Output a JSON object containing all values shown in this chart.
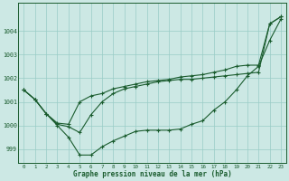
{
  "xlabel": "Graphe pression niveau de la mer (hPa)",
  "x_ticks": [
    0,
    1,
    2,
    3,
    4,
    5,
    6,
    7,
    8,
    9,
    10,
    11,
    12,
    13,
    14,
    15,
    16,
    17,
    18,
    19,
    20,
    21,
    22,
    23
  ],
  "ylim": [
    998.4,
    1005.2
  ],
  "yticks": [
    999,
    1000,
    1001,
    1002,
    1003,
    1004
  ],
  "background_color": "#cce8e4",
  "grid_color": "#99ccc6",
  "line_color": "#1a5c2e",
  "line1": [
    1001.5,
    1001.1,
    1000.5,
    1000.0,
    999.5,
    998.75,
    998.75,
    999.1,
    999.35,
    999.55,
    999.75,
    999.8,
    999.8,
    999.8,
    999.85,
    1000.05,
    1000.2,
    1000.65,
    1001.0,
    1001.5,
    1002.1,
    1002.5,
    1003.6,
    1004.5
  ],
  "line2": [
    1001.5,
    1001.1,
    1000.5,
    1000.1,
    1000.05,
    1001.0,
    1001.25,
    1001.35,
    1001.55,
    1001.65,
    1001.75,
    1001.85,
    1001.9,
    1001.95,
    1002.05,
    1002.1,
    1002.15,
    1002.25,
    1002.35,
    1002.5,
    1002.55,
    1002.55,
    1004.3,
    1004.6
  ],
  "line3": [
    1001.5,
    1001.1,
    1000.5,
    1000.05,
    999.95,
    999.7,
    1000.45,
    1001.0,
    1001.35,
    1001.55,
    1001.65,
    1001.75,
    1001.85,
    1001.9,
    1001.95,
    1001.95,
    1002.0,
    1002.05,
    1002.1,
    1002.15,
    1002.2,
    1002.25,
    1004.3,
    1004.6
  ]
}
